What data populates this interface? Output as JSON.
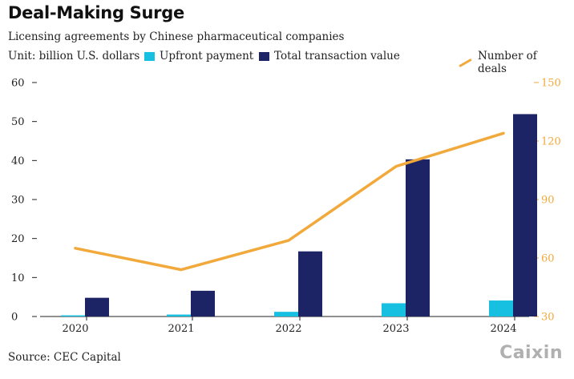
{
  "header": {
    "title": "Deal-Making Surge",
    "subtitle": "Licensing agreements by Chinese pharmaceutical companies",
    "unit": "Unit: billion U.S. dollars"
  },
  "legend": {
    "upfront": "Upfront payment",
    "total": "Total transaction value",
    "deals": "Number of deals"
  },
  "footer": {
    "source": "Source: CEC Capital",
    "logo": "Caixin"
  },
  "colors": {
    "upfront": "#17bfe0",
    "total": "#1d2466",
    "deals": "#f2a93b"
  },
  "chart_data": {
    "type": "bar",
    "title": "Deal-Making Surge",
    "categories": [
      "2020",
      "2021",
      "2022",
      "2023",
      "2024"
    ],
    "series": [
      {
        "name": "Upfront payment",
        "axis": "left",
        "values": [
          0.3,
          0.5,
          1.2,
          3.4,
          4.1
        ]
      },
      {
        "name": "Total transaction value",
        "axis": "left",
        "values": [
          4.8,
          6.6,
          16.7,
          40.3,
          51.9
        ]
      },
      {
        "name": "Number of deals",
        "type": "line",
        "axis": "right",
        "values": [
          65,
          54,
          69,
          107,
          124
        ]
      }
    ],
    "ylim": [
      0,
      60
    ],
    "yticks": [
      "0",
      "10",
      "20",
      "30",
      "40",
      "50",
      "60"
    ],
    "y2lim": [
      30,
      150
    ],
    "y2ticks": [
      "30",
      "60",
      "90",
      "120",
      "150"
    ],
    "ylabel": "Unit: billion U.S. dollars",
    "grid": false
  }
}
